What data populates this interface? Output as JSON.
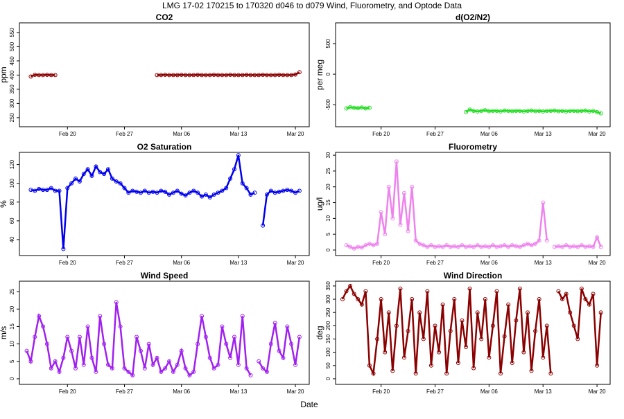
{
  "title": "LMG   17-02    170215 to 170320    d046 to d079   Wind, Fluorometry, and Optode Data",
  "xlabel": "Date",
  "chart_data": [
    {
      "type": "line",
      "title": "CO2",
      "ylabel": "ppm",
      "color": "#8b0000",
      "xlim": [
        45.1,
        80.7
      ],
      "xticks": [
        {
          "value": 51,
          "label": "Feb 20"
        },
        {
          "value": 58,
          "label": "Feb 27"
        },
        {
          "value": 65,
          "label": "Mar 06"
        },
        {
          "value": 72,
          "label": "Mar 13"
        },
        {
          "value": 79,
          "label": "Mar 20"
        }
      ],
      "ylim": [
        218,
        584
      ],
      "yticks": [
        250,
        300,
        350,
        400,
        450,
        500,
        550
      ],
      "x": [
        46,
        46.5,
        47,
        47.5,
        48,
        48.5,
        49,
        49.5,
        50,
        50.5,
        51,
        51.5,
        52,
        52.5,
        53,
        53.5,
        54,
        54.5,
        55,
        55.5,
        56,
        56.5,
        57,
        57.5,
        58,
        58.5,
        59,
        59.5,
        60,
        60.5,
        61,
        61.5,
        62,
        62.5,
        63,
        63.5,
        64,
        64.5,
        65,
        65.5,
        66,
        66.5,
        67,
        67.5,
        68,
        68.5,
        69,
        69.5,
        70,
        70.5,
        71,
        71.5,
        72,
        72.5,
        73,
        73.5,
        74,
        74.5,
        75,
        75.5,
        76,
        76.5,
        77,
        77.5,
        78,
        78.5,
        79,
        79.5
      ],
      "values": [
        null,
        395,
        401,
        400,
        400,
        401,
        400,
        400,
        null,
        null,
        null,
        null,
        null,
        null,
        null,
        null,
        null,
        null,
        null,
        null,
        null,
        null,
        null,
        null,
        null,
        null,
        null,
        null,
        null,
        null,
        null,
        null,
        400,
        400,
        401,
        400,
        400,
        400,
        401,
        400,
        400,
        400,
        401,
        400,
        400,
        400,
        401,
        400,
        400,
        400,
        401,
        400,
        400,
        400,
        401,
        400,
        400,
        400,
        401,
        400,
        400,
        400,
        401,
        400,
        400,
        400,
        402,
        410
      ]
    },
    {
      "type": "line",
      "title": "d(O2/N2)",
      "ylabel": "per meg",
      "color": "#22dd22",
      "xlim": [
        45.1,
        80.7
      ],
      "xticks": [
        {
          "value": 51,
          "label": "Feb 20"
        },
        {
          "value": 58,
          "label": "Feb 27"
        },
        {
          "value": 65,
          "label": "Mar 06"
        },
        {
          "value": 72,
          "label": "Mar 13"
        },
        {
          "value": 79,
          "label": "Mar 20"
        }
      ],
      "ylim": [
        -860,
        840
      ],
      "yticks": [
        -500,
        0,
        500
      ],
      "x": [
        46,
        46.5,
        47,
        47.5,
        48,
        48.5,
        49,
        49.5,
        50,
        50.5,
        51,
        51.5,
        52,
        52.5,
        53,
        53.5,
        54,
        54.5,
        55,
        55.5,
        56,
        56.5,
        57,
        57.5,
        58,
        58.5,
        59,
        59.5,
        60,
        60.5,
        61,
        61.5,
        62,
        62.5,
        63,
        63.5,
        64,
        64.5,
        65,
        65.5,
        66,
        66.5,
        67,
        67.5,
        68,
        68.5,
        69,
        69.5,
        70,
        70.5,
        71,
        71.5,
        72,
        72.5,
        73,
        73.5,
        74,
        74.5,
        75,
        75.5,
        76,
        76.5,
        77,
        77.5,
        78,
        78.5,
        79,
        79.5
      ],
      "values": [
        null,
        -560,
        -540,
        -550,
        -555,
        -545,
        -560,
        -550,
        null,
        null,
        null,
        null,
        null,
        null,
        null,
        null,
        null,
        null,
        null,
        null,
        null,
        null,
        null,
        null,
        null,
        null,
        null,
        null,
        null,
        null,
        null,
        null,
        -620,
        -580,
        -600,
        -610,
        -600,
        -590,
        -605,
        -600,
        -600,
        -610,
        -595,
        -600,
        -605,
        -600,
        -600,
        -610,
        -600,
        -595,
        -605,
        -600,
        -610,
        -600,
        -600,
        -595,
        -605,
        -600,
        -610,
        -600,
        -600,
        -605,
        -600,
        -595,
        -610,
        -600,
        -620,
        -640
      ]
    },
    {
      "type": "line",
      "title": "O2 Saturation",
      "ylabel": "%",
      "color": "#0000ee",
      "xlim": [
        45.1,
        80.7
      ],
      "xticks": [
        {
          "value": 51,
          "label": "Feb 20"
        },
        {
          "value": 58,
          "label": "Feb 27"
        },
        {
          "value": 65,
          "label": "Mar 06"
        },
        {
          "value": 72,
          "label": "Mar 13"
        },
        {
          "value": 79,
          "label": "Mar 20"
        }
      ],
      "ylim": [
        23,
        133
      ],
      "yticks": [
        40,
        60,
        80,
        100,
        120
      ],
      "x": [
        46,
        46.5,
        47,
        47.5,
        48,
        48.5,
        49,
        49.5,
        50,
        50.5,
        51,
        51.5,
        52,
        52.5,
        53,
        53.5,
        54,
        54.5,
        55,
        55.5,
        56,
        56.5,
        57,
        57.5,
        58,
        58.5,
        59,
        59.5,
        60,
        60.5,
        61,
        61.5,
        62,
        62.5,
        63,
        63.5,
        64,
        64.5,
        65,
        65.5,
        66,
        66.5,
        67,
        67.5,
        68,
        68.5,
        69,
        69.5,
        70,
        70.5,
        71,
        71.5,
        72,
        72.5,
        73,
        73.5,
        74,
        74.5,
        75,
        75.5,
        76,
        76.5,
        77,
        77.5,
        78,
        78.5,
        79,
        79.5
      ],
      "values": [
        null,
        93,
        92,
        94,
        93,
        93,
        95,
        92,
        92,
        30,
        95,
        100,
        105,
        102,
        110,
        115,
        108,
        118,
        112,
        110,
        115,
        105,
        102,
        100,
        95,
        90,
        92,
        91,
        90,
        92,
        90,
        91,
        90,
        92,
        91,
        88,
        90,
        92,
        89,
        87,
        90,
        92,
        90,
        86,
        88,
        85,
        88,
        90,
        92,
        95,
        105,
        115,
        130,
        100,
        95,
        88,
        90,
        null,
        55,
        88,
        92,
        90,
        91,
        92,
        93,
        92,
        90,
        92
      ]
    },
    {
      "type": "line",
      "title": "Fluorometry",
      "ylabel": "ug/l",
      "color": "#ee82ee",
      "xlim": [
        45.1,
        80.7
      ],
      "xticks": [
        {
          "value": 51,
          "label": "Feb 20"
        },
        {
          "value": 58,
          "label": "Feb 27"
        },
        {
          "value": 65,
          "label": "Mar 06"
        },
        {
          "value": 72,
          "label": "Mar 13"
        },
        {
          "value": 79,
          "label": "Mar 20"
        }
      ],
      "ylim": [
        -1.75,
        30.9
      ],
      "yticks": [
        0,
        5,
        10,
        15,
        20,
        25,
        30
      ],
      "x": [
        46,
        46.5,
        47,
        47.5,
        48,
        48.5,
        49,
        49.5,
        50,
        50.5,
        51,
        51.5,
        52,
        52.5,
        53,
        53.5,
        54,
        54.5,
        55,
        55.5,
        56,
        56.5,
        57,
        57.5,
        58,
        58.5,
        59,
        59.5,
        60,
        60.5,
        61,
        61.5,
        62,
        62.5,
        63,
        63.5,
        64,
        64.5,
        65,
        65.5,
        66,
        66.5,
        67,
        67.5,
        68,
        68.5,
        69,
        69.5,
        70,
        70.5,
        71,
        71.5,
        72,
        72.5,
        73,
        73.5,
        74,
        74.5,
        75,
        75.5,
        76,
        76.5,
        77,
        77.5,
        78,
        78.5,
        79,
        79.5
      ],
      "values": [
        null,
        1.5,
        1,
        0.5,
        1,
        0.8,
        1.5,
        2,
        1.5,
        2,
        12,
        5,
        20,
        10,
        28,
        8,
        18,
        6,
        20,
        3,
        2,
        1.5,
        1,
        1.5,
        1,
        1.2,
        1,
        1.5,
        1,
        1.2,
        1,
        1.5,
        1,
        1.2,
        1,
        1.5,
        1,
        1.2,
        1,
        1.5,
        1,
        1.2,
        1.5,
        1,
        1.5,
        1.2,
        1,
        1.5,
        2,
        1.5,
        2,
        3,
        15,
        3,
        null,
        1,
        1.2,
        1,
        1.5,
        1,
        1.2,
        1,
        1.5,
        1,
        1.2,
        1,
        4,
        1
      ]
    },
    {
      "type": "line",
      "title": "Wind Speed",
      "ylabel": "m/s",
      "color": "#a020f0",
      "xlim": [
        45.1,
        80.7
      ],
      "xticks": [
        {
          "value": 51,
          "label": "Feb 20"
        },
        {
          "value": 58,
          "label": "Feb 27"
        },
        {
          "value": 65,
          "label": "Mar 06"
        },
        {
          "value": 72,
          "label": "Mar 13"
        },
        {
          "value": 79,
          "label": "Mar 20"
        }
      ],
      "ylim": [
        -1.6,
        28
      ],
      "yticks": [
        0,
        5,
        10,
        15,
        20,
        25
      ],
      "x": [
        46,
        46.5,
        47,
        47.5,
        48,
        48.5,
        49,
        49.5,
        50,
        50.5,
        51,
        51.5,
        52,
        52.5,
        53,
        53.5,
        54,
        54.5,
        55,
        55.5,
        56,
        56.5,
        57,
        57.5,
        58,
        58.5,
        59,
        59.5,
        60,
        60.5,
        61,
        61.5,
        62,
        62.5,
        63,
        63.5,
        64,
        64.5,
        65,
        65.5,
        66,
        66.5,
        67,
        67.5,
        68,
        68.5,
        69,
        69.5,
        70,
        70.5,
        71,
        71.5,
        72,
        72.5,
        73,
        73.5,
        74,
        74.5,
        75,
        75.5,
        76,
        76.5,
        77,
        77.5,
        78,
        78.5,
        79,
        79.5
      ],
      "values": [
        8,
        5,
        12,
        18,
        15,
        10,
        3,
        5,
        2,
        6,
        12,
        8,
        3,
        12,
        4,
        15,
        6,
        2,
        18,
        10,
        4,
        3,
        22,
        15,
        3,
        2,
        1,
        12,
        8,
        3,
        10,
        4,
        6,
        2,
        3,
        5,
        2,
        4,
        8,
        3,
        1,
        2,
        10,
        18,
        12,
        6,
        3,
        4,
        15,
        10,
        6,
        12,
        4,
        18,
        3,
        1,
        null,
        5,
        3,
        2,
        10,
        16,
        8,
        6,
        15,
        10,
        4,
        12
      ]
    },
    {
      "type": "line",
      "title": "Wind Direction",
      "ylabel": "deg",
      "color": "#8b0000",
      "xlim": [
        45.1,
        80.7
      ],
      "xticks": [
        {
          "value": 51,
          "label": "Feb 20"
        },
        {
          "value": 58,
          "label": "Feb 27"
        },
        {
          "value": 65,
          "label": "Mar 06"
        },
        {
          "value": 72,
          "label": "Mar 13"
        },
        {
          "value": 79,
          "label": "Mar 20"
        }
      ],
      "ylim": [
        -21,
        368
      ],
      "yticks": [
        0,
        50,
        100,
        150,
        200,
        250,
        300,
        350
      ],
      "x": [
        46,
        46.5,
        47,
        47.5,
        48,
        48.5,
        49,
        49.5,
        50,
        50.5,
        51,
        51.5,
        52,
        52.5,
        53,
        53.5,
        54,
        54.5,
        55,
        55.5,
        56,
        56.5,
        57,
        57.5,
        58,
        58.5,
        59,
        59.5,
        60,
        60.5,
        61,
        61.5,
        62,
        62.5,
        63,
        63.5,
        64,
        64.5,
        65,
        65.5,
        66,
        66.5,
        67,
        67.5,
        68,
        68.5,
        69,
        69.5,
        70,
        70.5,
        71,
        71.5,
        72,
        72.5,
        73,
        73.5,
        74,
        74.5,
        75,
        75.5,
        76,
        76.5,
        77,
        77.5,
        78,
        78.5,
        79,
        79.5
      ],
      "values": [
        300,
        330,
        350,
        320,
        300,
        280,
        330,
        50,
        20,
        150,
        300,
        100,
        250,
        30,
        200,
        340,
        80,
        180,
        300,
        20,
        250,
        150,
        330,
        50,
        200,
        100,
        280,
        20,
        180,
        300,
        60,
        220,
        120,
        340,
        40,
        250,
        150,
        300,
        80,
        200,
        330,
        20,
        160,
        280,
        60,
        220,
        340,
        100,
        250,
        30,
        180,
        300,
        80,
        200,
        20,
        null,
        330,
        300,
        320,
        250,
        200,
        150,
        340,
        300,
        280,
        320,
        50,
        250
      ]
    }
  ]
}
